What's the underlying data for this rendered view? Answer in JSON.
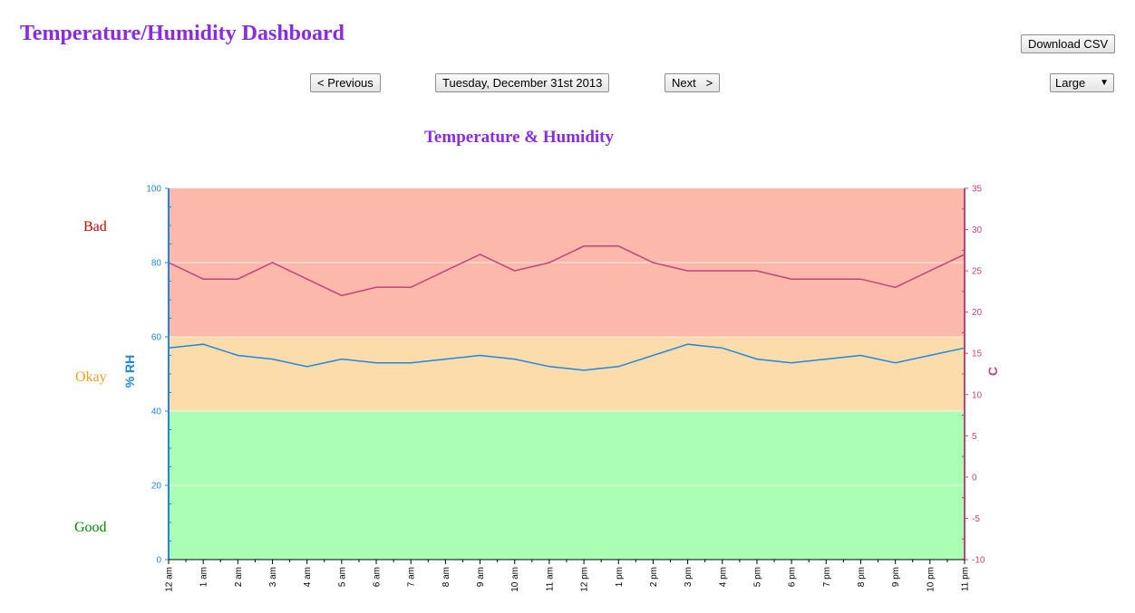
{
  "header": {
    "title": "Temperature/Humidity Dashboard"
  },
  "toolbar": {
    "download_label": "Download CSV",
    "previous_label": "< Previous",
    "date_label": "Tuesday, December 31st 2013",
    "next_label": "Next   >",
    "size_select": {
      "selected": "Large"
    }
  },
  "zones": {
    "bad": {
      "label": "Bad",
      "color": "#cc0000",
      "fill": "#fcb8aa",
      "range": [
        60,
        100
      ]
    },
    "okay": {
      "label": "Okay",
      "color": "#f0a020",
      "fill": "#fcdcaa",
      "range": [
        40,
        60
      ]
    },
    "good": {
      "label": "Good",
      "color": "#008800",
      "fill": "#aaffb4",
      "range": [
        0,
        40
      ]
    }
  },
  "chart_data": {
    "type": "line",
    "title": "Temperature & Humidity",
    "x": [
      "12 am",
      "1 am",
      "2 am",
      "3 am",
      "4 am",
      "5 am",
      "6 am",
      "7 am",
      "8 am",
      "9 am",
      "10 am",
      "11 am",
      "12 pm",
      "1 pm",
      "2 pm",
      "3 pm",
      "4 pm",
      "5 pm",
      "6 pm",
      "7 pm",
      "8 pm",
      "9 pm",
      "10 pm",
      "11 pm"
    ],
    "y_left": {
      "label": "% RH",
      "range": [
        0,
        100
      ],
      "ticks": [
        0,
        20,
        40,
        60,
        80,
        100
      ],
      "color": "#1e88e5"
    },
    "y_right": {
      "label": "C",
      "range": [
        -10,
        35
      ],
      "ticks": [
        -10,
        -5,
        0,
        5,
        10,
        15,
        20,
        25,
        30,
        35
      ],
      "color": "#c0457a"
    },
    "grid": true,
    "series": [
      {
        "axis": "left",
        "color": "#1e88e5",
        "values": [
          57,
          58,
          55,
          54,
          52,
          54,
          53,
          53,
          54,
          55,
          54,
          52,
          51,
          52,
          55,
          58,
          57,
          54,
          53,
          54,
          55,
          53,
          55,
          57
        ]
      },
      {
        "axis": "right",
        "color": "#c0457a",
        "values": [
          26,
          24,
          24,
          26,
          24,
          22,
          23,
          23,
          25,
          27,
          25,
          26,
          28,
          28,
          26,
          25,
          25,
          25,
          24,
          24,
          24,
          23,
          25,
          27
        ]
      }
    ]
  }
}
